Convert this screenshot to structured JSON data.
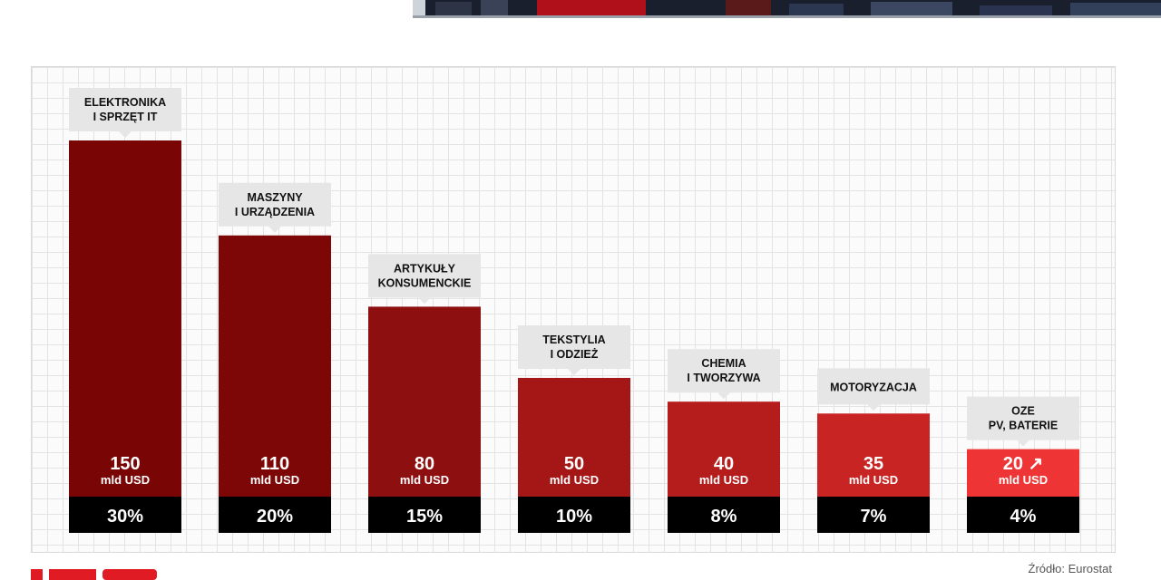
{
  "source": "Źródło: Eurostat",
  "colors": {
    "bar_gradient": [
      "#7a0505",
      "#7d0707",
      "#8e0f0f",
      "#a51616",
      "#b51c1c",
      "#c82424",
      "#ee3434"
    ],
    "pct_band": "#000000",
    "label_box": "#e6e6e6",
    "grid": "#e3e3e3"
  },
  "chart_data": {
    "type": "bar",
    "title": "",
    "xlabel": "",
    "ylabel": "",
    "ylim": [
      0,
      150
    ],
    "grid": true,
    "categories": [
      [
        "ELEKTRONIKA",
        "I SPRZĘT IT"
      ],
      [
        "MASZYNY",
        "I URZĄDZENIA"
      ],
      [
        "ARTYKUŁY",
        "KONSUMENCKIE"
      ],
      [
        "TEKSTYLIA",
        "I ODZIEŻ"
      ],
      [
        "CHEMIA",
        "I TWORZYWA"
      ],
      [
        "MOTORYZACJA"
      ],
      [
        "OZE",
        "PV, BATERIE"
      ]
    ],
    "values": [
      150,
      110,
      80,
      50,
      40,
      35,
      20
    ],
    "value_labels": [
      "150",
      "110",
      "80",
      "50",
      "40",
      "35",
      "20 ↗"
    ],
    "unit": "mld USD",
    "shares": [
      "30%",
      "20%",
      "15%",
      "10%",
      "8%",
      "7%",
      "4%"
    ]
  }
}
